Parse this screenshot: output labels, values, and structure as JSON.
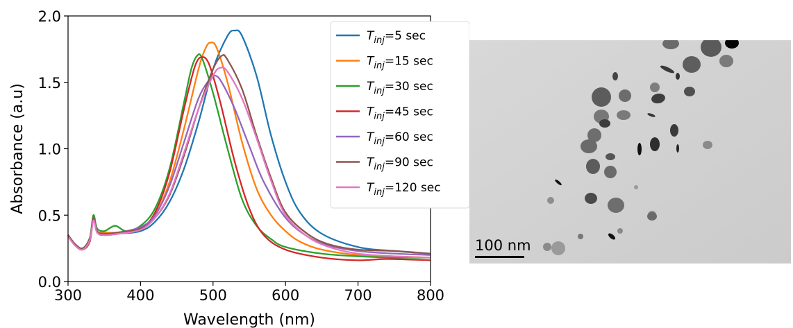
{
  "chart_data": {
    "type": "line",
    "title": "",
    "xlabel": "Wavelength (nm)",
    "ylabel": "Absorbance (a.u)",
    "xlim": [
      300,
      800
    ],
    "ylim": [
      0,
      2.0
    ],
    "xticks": [
      "300",
      "400",
      "500",
      "600",
      "700",
      "800"
    ],
    "yticks": [
      "0.0",
      "0.5",
      "1.0",
      "1.5",
      "2.0"
    ],
    "grid": false,
    "legend_position": "top-right",
    "series": [
      {
        "name": "=5 sec",
        "label_sub": "inj",
        "color": "#1f77b4",
        "x": [
          300,
          310,
          320,
          330,
          335,
          340,
          350,
          370,
          400,
          420,
          440,
          460,
          480,
          500,
          520,
          530,
          540,
          560,
          580,
          600,
          620,
          650,
          700,
          750,
          800
        ],
        "y": [
          0.35,
          0.28,
          0.25,
          0.32,
          0.47,
          0.38,
          0.35,
          0.36,
          0.38,
          0.45,
          0.6,
          0.85,
          1.2,
          1.6,
          1.85,
          1.89,
          1.85,
          1.55,
          1.1,
          0.75,
          0.52,
          0.36,
          0.26,
          0.23,
          0.21
        ]
      },
      {
        "name": "=15 sec",
        "label_sub": "inj",
        "color": "#ff7f0e",
        "x": [
          300,
          310,
          320,
          330,
          335,
          340,
          350,
          370,
          400,
          420,
          440,
          460,
          480,
          490,
          497,
          505,
          520,
          540,
          560,
          580,
          600,
          620,
          650,
          700,
          750,
          800
        ],
        "y": [
          0.35,
          0.28,
          0.25,
          0.32,
          0.48,
          0.38,
          0.37,
          0.37,
          0.4,
          0.5,
          0.75,
          1.15,
          1.6,
          1.76,
          1.8,
          1.76,
          1.5,
          1.05,
          0.7,
          0.5,
          0.38,
          0.3,
          0.24,
          0.2,
          0.19,
          0.18
        ]
      },
      {
        "name": "=30 sec",
        "label_sub": "inj",
        "color": "#2ca02c",
        "x": [
          300,
          310,
          320,
          330,
          335,
          340,
          350,
          365,
          380,
          400,
          420,
          440,
          460,
          470,
          478,
          485,
          500,
          520,
          540,
          560,
          580,
          600,
          650,
          700,
          750,
          800
        ],
        "y": [
          0.35,
          0.28,
          0.25,
          0.33,
          0.5,
          0.4,
          0.38,
          0.42,
          0.38,
          0.42,
          0.55,
          0.85,
          1.35,
          1.6,
          1.7,
          1.68,
          1.42,
          1.0,
          0.62,
          0.42,
          0.32,
          0.26,
          0.21,
          0.19,
          0.18,
          0.18
        ]
      },
      {
        "name": "=45 sec",
        "label_sub": "inj",
        "color": "#d62728",
        "x": [
          300,
          310,
          320,
          330,
          335,
          340,
          350,
          370,
          400,
          420,
          440,
          460,
          475,
          485,
          495,
          510,
          530,
          550,
          570,
          600,
          650,
          700,
          740,
          800
        ],
        "y": [
          0.34,
          0.27,
          0.24,
          0.3,
          0.47,
          0.37,
          0.35,
          0.37,
          0.4,
          0.52,
          0.82,
          1.3,
          1.62,
          1.69,
          1.63,
          1.35,
          0.9,
          0.55,
          0.35,
          0.24,
          0.18,
          0.16,
          0.17,
          0.16
        ]
      },
      {
        "name": "=60 sec",
        "label_sub": "inj",
        "color": "#9467bd",
        "x": [
          300,
          310,
          320,
          330,
          335,
          340,
          350,
          370,
          400,
          420,
          440,
          460,
          480,
          495,
          503,
          512,
          530,
          550,
          570,
          600,
          630,
          660,
          700,
          750,
          800
        ],
        "y": [
          0.35,
          0.28,
          0.25,
          0.32,
          0.48,
          0.38,
          0.36,
          0.37,
          0.41,
          0.5,
          0.72,
          1.05,
          1.38,
          1.52,
          1.55,
          1.5,
          1.3,
          1.02,
          0.75,
          0.48,
          0.34,
          0.27,
          0.23,
          0.21,
          0.2
        ]
      },
      {
        "name": "=90 sec",
        "label_sub": "inj",
        "color": "#8c564b",
        "x": [
          300,
          310,
          320,
          330,
          335,
          340,
          350,
          370,
          400,
          420,
          440,
          460,
          480,
          500,
          512,
          520,
          540,
          560,
          580,
          600,
          630,
          660,
          700,
          750,
          800
        ],
        "y": [
          0.35,
          0.28,
          0.25,
          0.32,
          0.48,
          0.38,
          0.36,
          0.37,
          0.4,
          0.48,
          0.65,
          0.95,
          1.3,
          1.6,
          1.7,
          1.67,
          1.45,
          1.1,
          0.78,
          0.52,
          0.36,
          0.28,
          0.24,
          0.23,
          0.21
        ]
      },
      {
        "name": "=120 sec",
        "label_sub": "inj",
        "color": "#e377c2",
        "x": [
          300,
          310,
          320,
          330,
          335,
          340,
          350,
          370,
          400,
          420,
          440,
          460,
          480,
          500,
          510,
          520,
          540,
          560,
          580,
          600,
          630,
          660,
          700,
          750,
          800
        ],
        "y": [
          0.34,
          0.27,
          0.24,
          0.31,
          0.46,
          0.37,
          0.35,
          0.36,
          0.39,
          0.48,
          0.66,
          0.97,
          1.3,
          1.55,
          1.61,
          1.58,
          1.38,
          1.08,
          0.76,
          0.5,
          0.34,
          0.26,
          0.21,
          0.19,
          0.18
        ]
      }
    ]
  },
  "legend": {
    "symbol": "T"
  },
  "micrograph": {
    "scale_label": "100 nm"
  }
}
